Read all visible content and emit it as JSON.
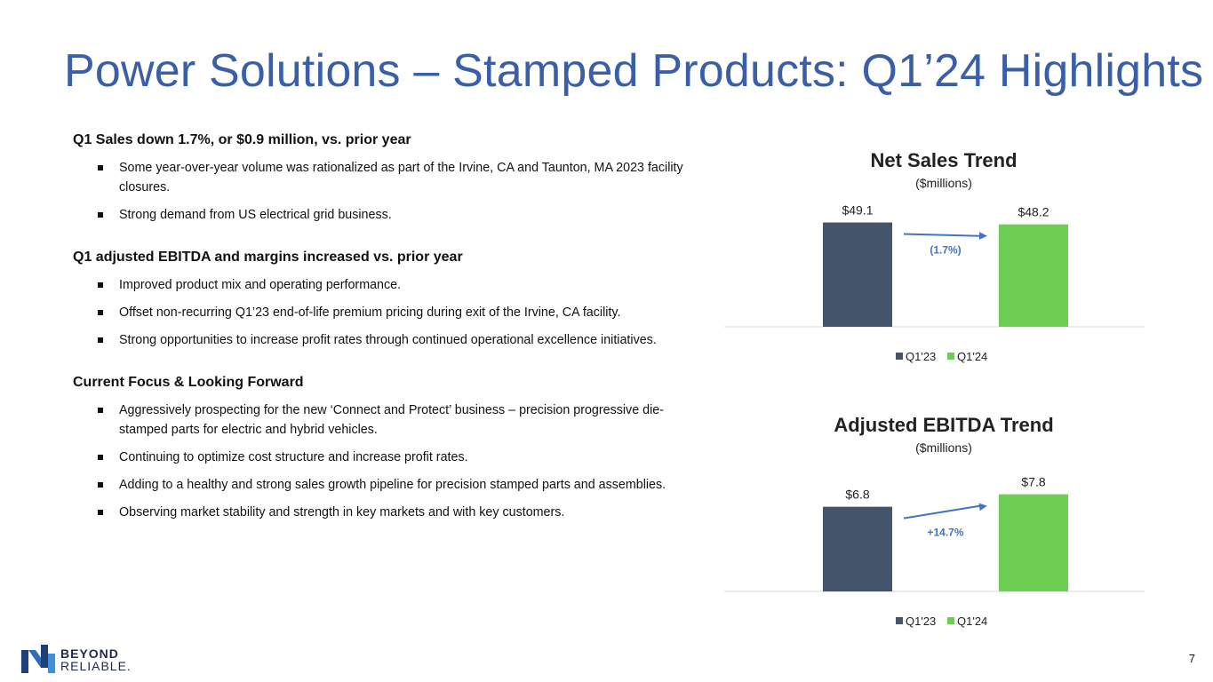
{
  "title": "Power Solutions – Stamped Products: Q1’24 Highlights",
  "sections": [
    {
      "heading": "Q1 Sales down 1.7%, or $0.9 million, vs. prior year",
      "bullets": [
        "Some year-over-year volume was rationalized as part of the Irvine, CA and Taunton, MA 2023 facility closures.",
        "Strong demand from US electrical grid business."
      ]
    },
    {
      "heading": "Q1 adjusted EBITDA and margins increased vs. prior year",
      "bullets": [
        "Improved product mix and operating performance.",
        "Offset non-recurring Q1’23 end-of-life premium pricing during exit of the Irvine, CA facility.",
        "Strong opportunities to increase profit rates through continued operational excellence initiatives."
      ]
    },
    {
      "heading": "Current Focus & Looking Forward",
      "bullets": [
        "Aggressively prospecting for the new ‘Connect and Protect’ business – precision progressive die-stamped parts for electric and hybrid vehicles.",
        "Continuing to optimize cost structure and increase profit rates.",
        "Adding to a healthy and strong sales growth pipeline for precision stamped parts and assemblies.",
        "Observing market stability and strength in key markets and with key customers."
      ]
    }
  ],
  "chart_data": [
    {
      "type": "bar",
      "title": "Net Sales Trend",
      "subtitle": "($millions)",
      "series": [
        {
          "name": "Q1'23",
          "value": 49.1,
          "label": "$49.1",
          "color": "#44546a"
        },
        {
          "name": "Q1'24",
          "value": 48.2,
          "label": "$48.2",
          "color": "#6dce53"
        }
      ],
      "change_label": "(1.7%)",
      "ylim": [
        0,
        51
      ],
      "legend": "bottom",
      "grid": false
    },
    {
      "type": "bar",
      "title": "Adjusted EBITDA Trend",
      "subtitle": "($millions)",
      "series": [
        {
          "name": "Q1'23",
          "value": 6.8,
          "label": "$6.8",
          "color": "#44546a"
        },
        {
          "name": "Q1'24",
          "value": 7.8,
          "label": "$7.8",
          "color": "#6dce53"
        }
      ],
      "change_label": "+14.7%",
      "ylim": [
        0,
        8.7
      ],
      "legend": "bottom",
      "grid": false
    }
  ],
  "colors": {
    "title": "#3a5fa8",
    "arrow": "#4472c4",
    "change_label": "#4472c4"
  },
  "logo": {
    "line1": "BEYOND",
    "line2": "RELIABLE."
  },
  "page_number": "7"
}
